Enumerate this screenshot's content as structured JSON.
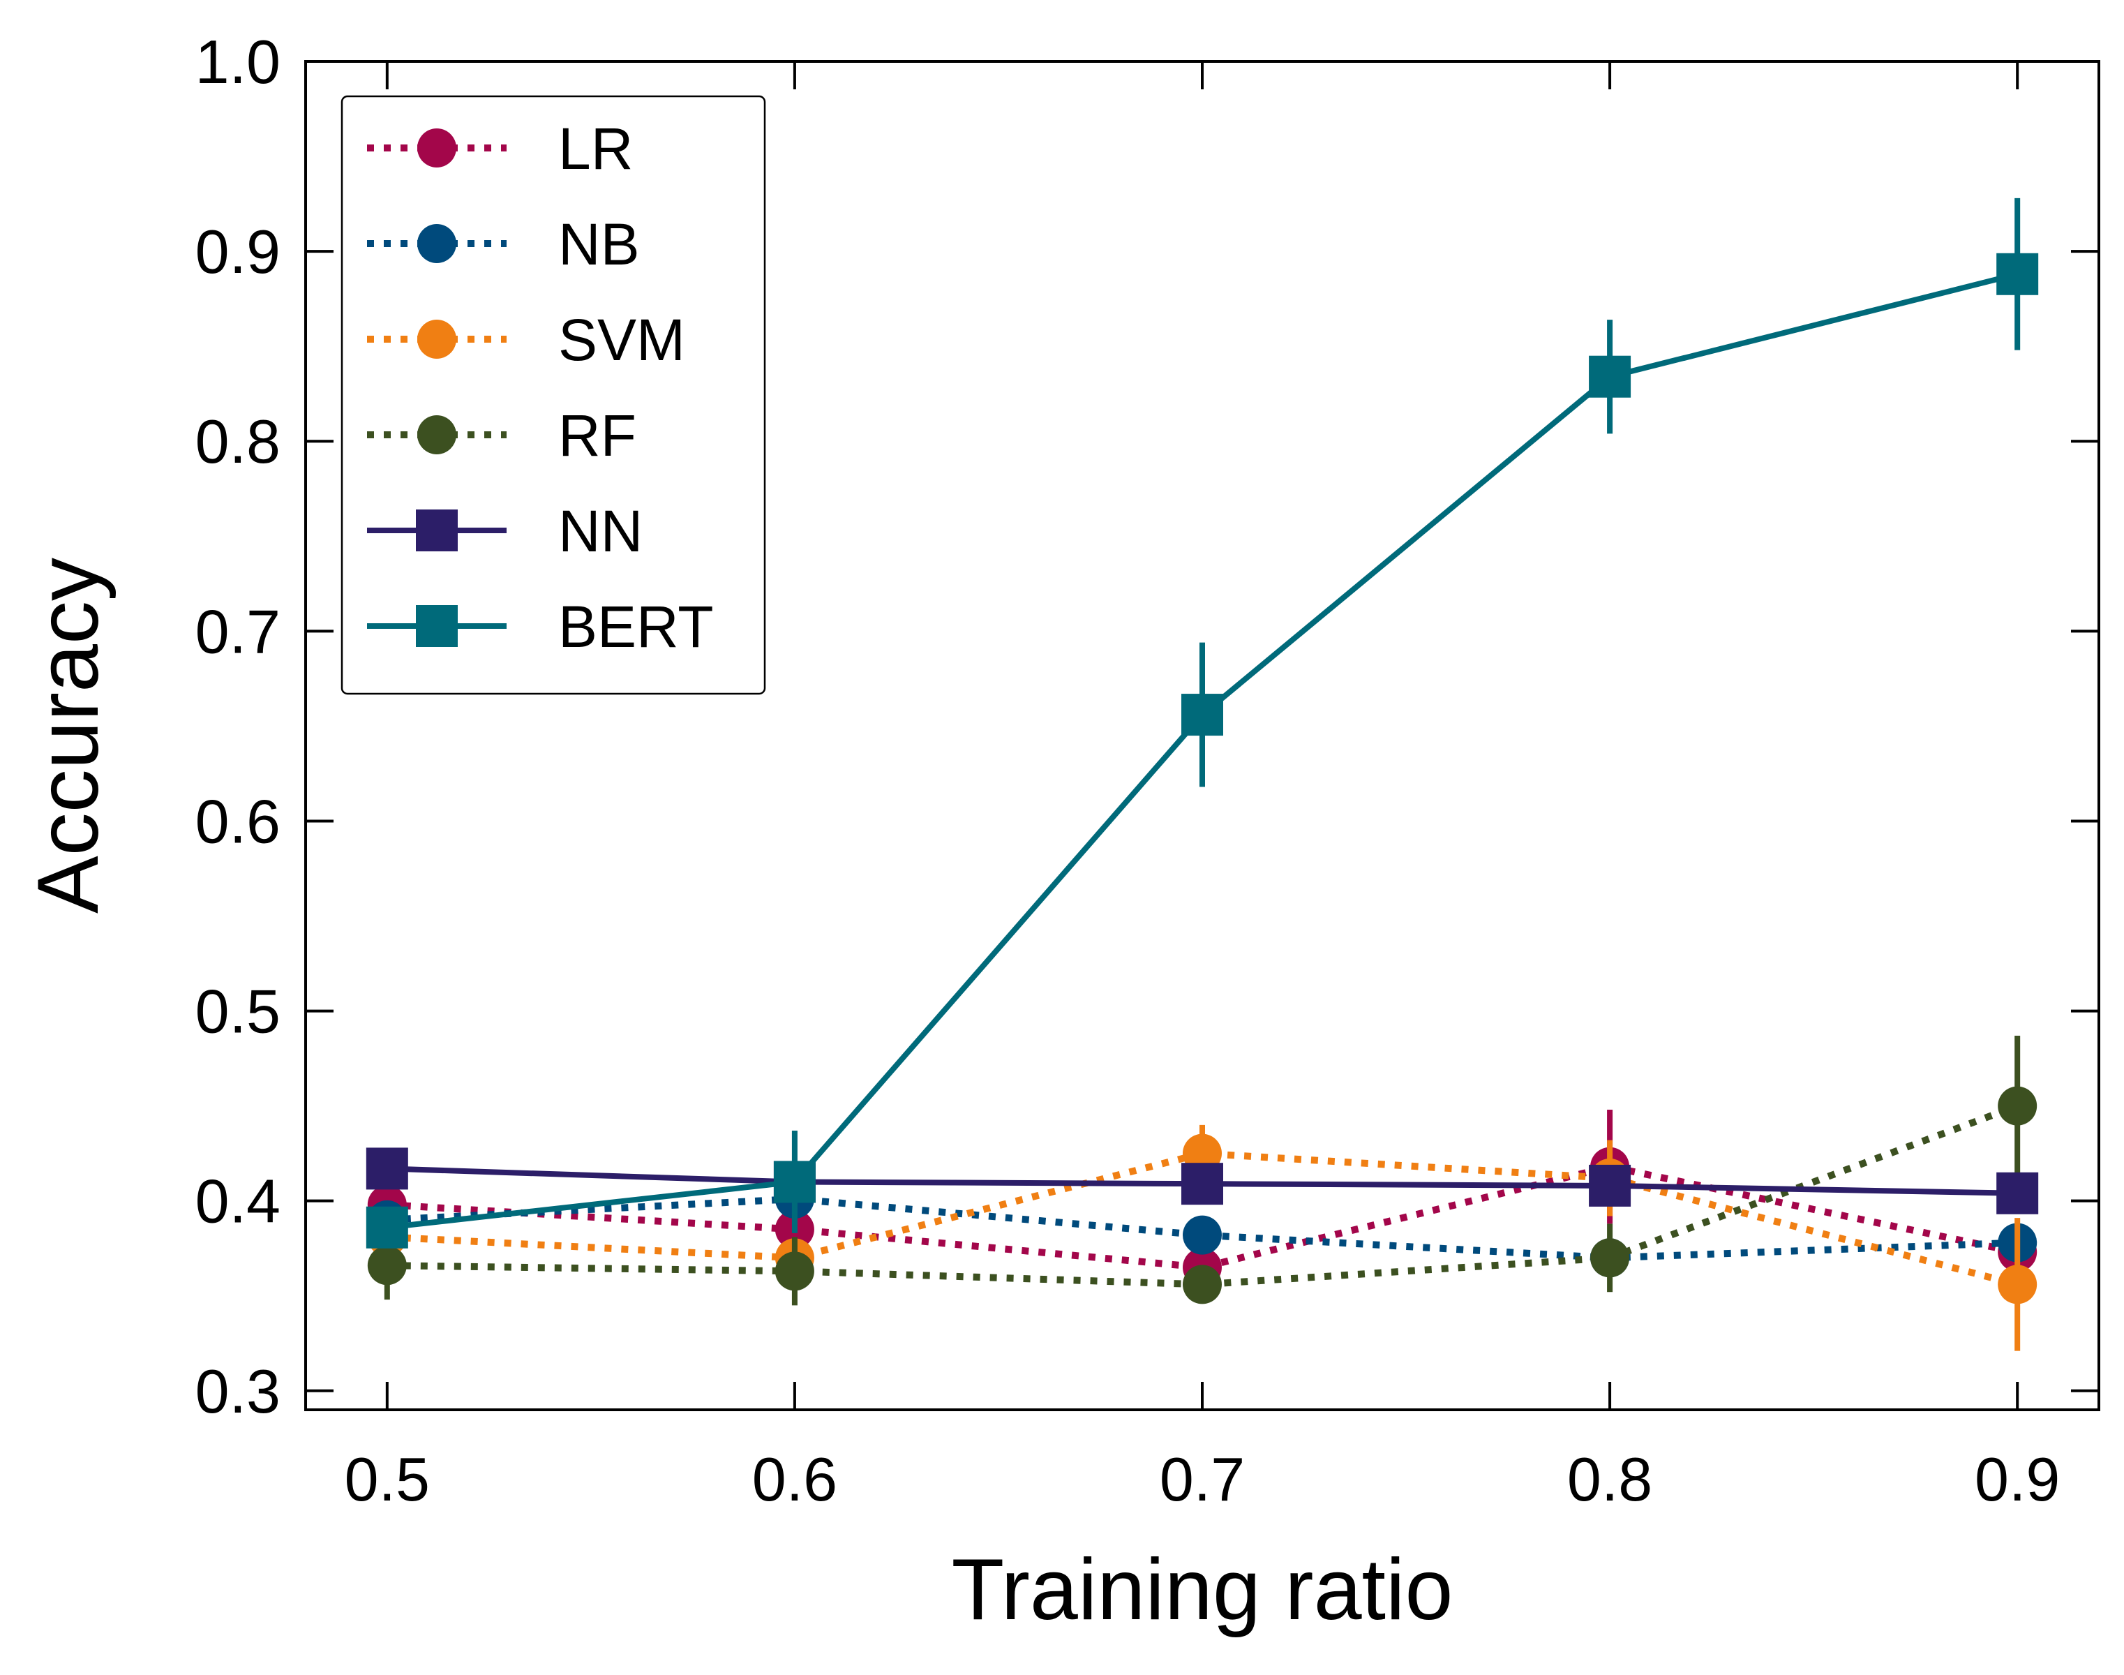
{
  "chart_data": {
    "type": "line",
    "xlabel": "Training ratio",
    "ylabel": "Accuracy",
    "xlim": [
      0.48,
      0.92
    ],
    "ylim": [
      0.29,
      1.0
    ],
    "xticks": [
      "0.5",
      "0.6",
      "0.7",
      "0.8",
      "0.9"
    ],
    "xtick_values": [
      0.5,
      0.6,
      0.7,
      0.8,
      0.9
    ],
    "yticks": [
      "0.3",
      "0.4",
      "0.5",
      "0.6",
      "0.7",
      "0.8",
      "0.9",
      "1.0"
    ],
    "ytick_values": [
      0.3,
      0.4,
      0.5,
      0.6,
      0.7,
      0.8,
      0.9,
      1.0
    ],
    "grid": false,
    "legend_position": "top-left",
    "x": [
      0.5,
      0.6,
      0.7,
      0.8,
      0.9
    ],
    "series": [
      {
        "name": "LR",
        "color": "#a3064a",
        "line": "dotted",
        "marker": "circle",
        "values": [
          0.398,
          0.385,
          0.365,
          0.418,
          0.373
        ],
        "errors": [
          0.01,
          0.01,
          0.008,
          0.03,
          0.01
        ]
      },
      {
        "name": "NB",
        "color": "#004a7c",
        "line": "dotted",
        "marker": "circle",
        "values": [
          0.39,
          0.401,
          0.382,
          0.37,
          0.378
        ],
        "errors": [
          0.01,
          0.008,
          0.01,
          0.01,
          0.008
        ]
      },
      {
        "name": "SVM",
        "color": "#f07f13",
        "line": "dotted",
        "marker": "circle",
        "values": [
          0.381,
          0.37,
          0.425,
          0.412,
          0.356
        ],
        "errors": [
          0.01,
          0.01,
          0.015,
          0.02,
          0.035
        ]
      },
      {
        "name": "RF",
        "color": "#3c5020",
        "line": "dotted",
        "marker": "circle",
        "values": [
          0.366,
          0.363,
          0.356,
          0.37,
          0.45
        ],
        "errors": [
          0.018,
          0.018,
          0.01,
          0.018,
          0.037
        ]
      },
      {
        "name": "NN",
        "color": "#2c1e68",
        "line": "solid",
        "marker": "square",
        "values": [
          0.417,
          0.41,
          0.409,
          0.408,
          0.404
        ],
        "errors": [
          0.005,
          0.005,
          0.005,
          0.005,
          0.005
        ]
      },
      {
        "name": "BERT",
        "color": "#006a7a",
        "line": "solid",
        "marker": "square",
        "values": [
          0.386,
          0.41,
          0.656,
          0.834,
          0.888
        ],
        "errors": [
          0.01,
          0.027,
          0.038,
          0.03,
          0.04
        ]
      }
    ]
  }
}
